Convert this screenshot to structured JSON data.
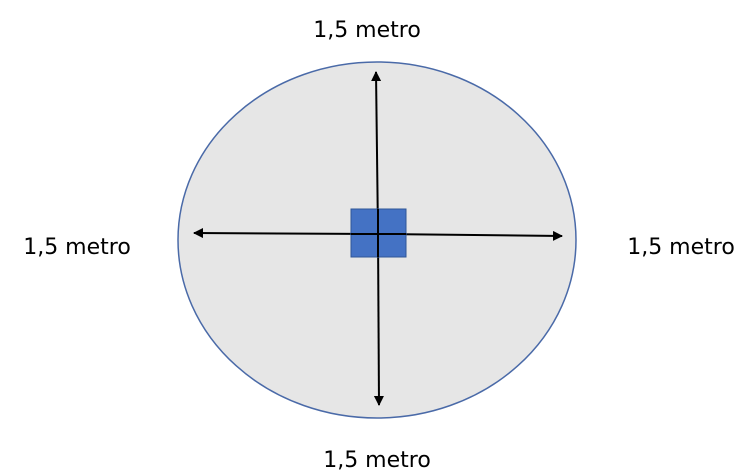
{
  "labels": {
    "top": "1,5 metro",
    "bottom": "1,5 metro",
    "left": "1,5 metro",
    "right": "1,5 metro"
  },
  "colors": {
    "circle_fill": "#e6e6e6",
    "circle_stroke": "#4a6aa8",
    "person_fill": "#4472c4",
    "person_stroke": "#2f5597",
    "arrow": "#000000",
    "text": "#000000"
  }
}
